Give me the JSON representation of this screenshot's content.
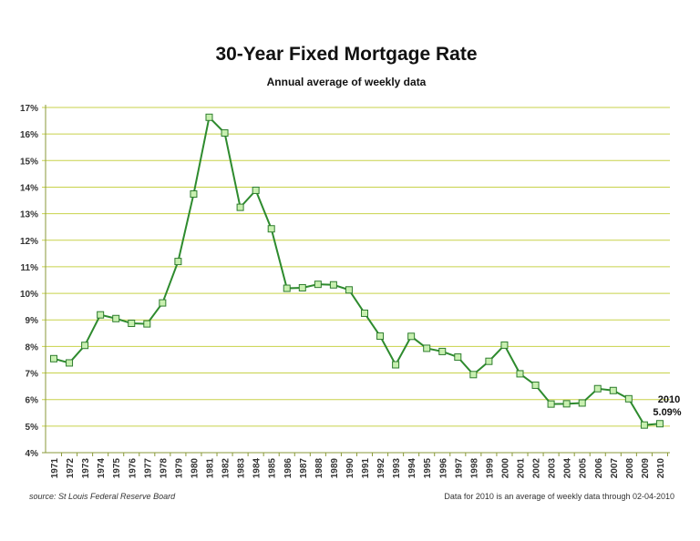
{
  "chart_data": {
    "type": "line",
    "title": "30-Year Fixed Mortgage Rate",
    "subtitle": "Annual average of weekly data",
    "xlabel": "",
    "ylabel": "",
    "ylim": [
      4,
      17
    ],
    "grid": true,
    "y_ticks": [
      "4%",
      "5%",
      "6%",
      "7%",
      "8%",
      "9%",
      "10%",
      "11%",
      "12%",
      "13%",
      "14%",
      "15%",
      "16%",
      "17%"
    ],
    "x": [
      "1971",
      "1972",
      "1973",
      "1974",
      "1975",
      "1976",
      "1977",
      "1978",
      "1979",
      "1980",
      "1981",
      "1982",
      "1983",
      "1984",
      "1985",
      "1986",
      "1987",
      "1988",
      "1989",
      "1990",
      "1991",
      "1992",
      "1993",
      "1994",
      "1995",
      "1996",
      "1997",
      "1998",
      "1999",
      "2000",
      "2001",
      "2002",
      "2003",
      "2004",
      "2005",
      "2006",
      "2007",
      "2008",
      "2009",
      "2010"
    ],
    "series": [
      {
        "name": "30-Year Fixed Mortgage Rate",
        "color": "#2e8b2e",
        "values": [
          7.54,
          7.38,
          8.04,
          9.19,
          9.05,
          8.87,
          8.85,
          9.64,
          11.2,
          13.74,
          16.63,
          16.04,
          13.24,
          13.88,
          12.43,
          10.19,
          10.21,
          10.34,
          10.32,
          10.13,
          9.25,
          8.39,
          7.31,
          8.38,
          7.93,
          7.81,
          7.6,
          6.94,
          7.44,
          8.05,
          6.97,
          6.54,
          5.83,
          5.84,
          5.87,
          6.41,
          6.34,
          6.03,
          5.04,
          5.09
        ]
      }
    ],
    "annotation": {
      "year": "2010",
      "value": "5.09%"
    },
    "source": "source: St Louis Federal Reserve Board",
    "footnote": "Data for 2010 is an average of weekly data through 02-04-2010"
  }
}
